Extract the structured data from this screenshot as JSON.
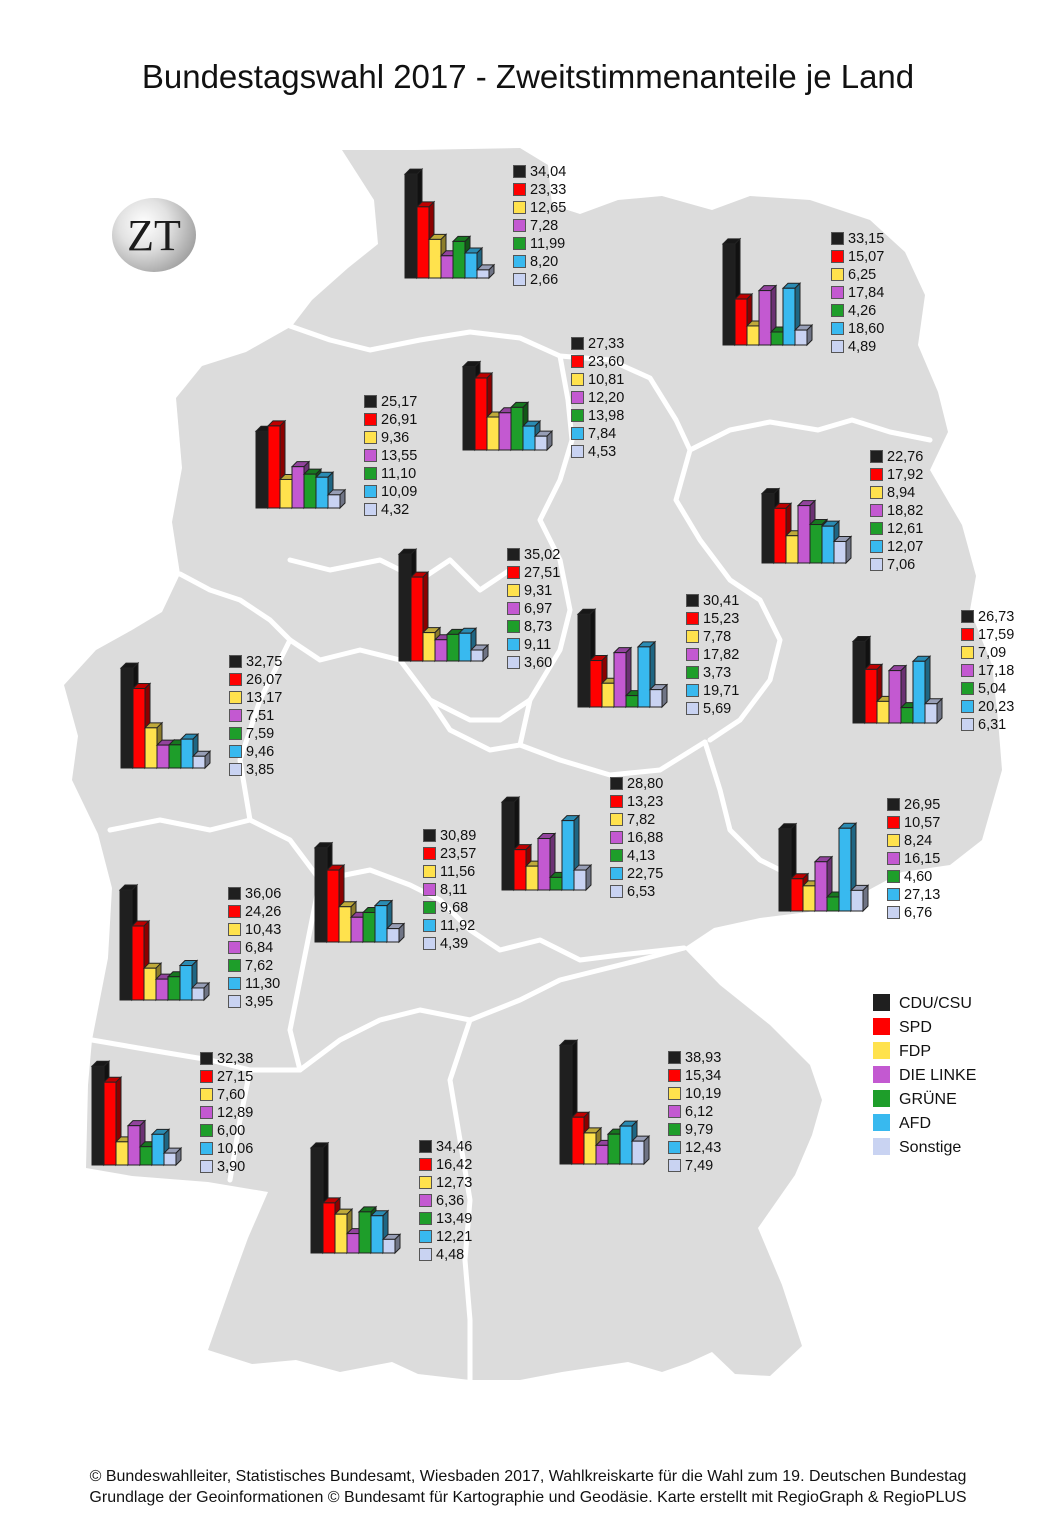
{
  "title": "Bundestagswahl 2017 - Zweitstimmenanteile je Land",
  "logo_text": "ZT",
  "credits": {
    "line1": "© Bundeswahlleiter, Statistisches Bundesamt, Wiesbaden 2017, Wahlkreiskarte für die Wahl zum 19. Deutschen Bundestag",
    "line2": "Grundlage der Geoinformationen © Bundesamt für Kartographie und Geodäsie. Karte erstellt mit RegioGraph & RegioPLUS"
  },
  "legend": [
    {
      "label": "CDU/CSU",
      "color": "#1f1f1f"
    },
    {
      "label": "SPD",
      "color": "#ff0000"
    },
    {
      "label": "FDP",
      "color": "#ffe24d"
    },
    {
      "label": "DIE LINKE",
      "color": "#c359d1"
    },
    {
      "label": "GRÜNE",
      "color": "#1e9e2a"
    },
    {
      "label": "AFD",
      "color": "#38b9ef"
    },
    {
      "label": "Sonstige",
      "color": "#c9d3f2"
    }
  ],
  "chart_data": {
    "type": "bar",
    "title": "Bundestagswahl 2017 - Zweitstimmenanteile je Land",
    "unit": "%",
    "categories": [
      "CDU/CSU",
      "SPD",
      "FDP",
      "DIE LINKE",
      "GRÜNE",
      "AFD",
      "Sonstige"
    ],
    "regions": [
      {
        "id": "schleswig-holstein",
        "values": [
          "34,04",
          "23,33",
          "12,65",
          "7,28",
          "11,99",
          "8,20",
          "2,66"
        ]
      },
      {
        "id": "mecklenburg-vorpommern",
        "values": [
          "33,15",
          "15,07",
          "6,25",
          "17,84",
          "4,26",
          "18,60",
          "4,89"
        ]
      },
      {
        "id": "hamburg",
        "values": [
          "27,33",
          "23,60",
          "10,81",
          "12,20",
          "13,98",
          "7,84",
          "4,53"
        ]
      },
      {
        "id": "bremen",
        "values": [
          "25,17",
          "26,91",
          "9,36",
          "13,55",
          "11,10",
          "10,09",
          "4,32"
        ]
      },
      {
        "id": "berlin",
        "values": [
          "22,76",
          "17,92",
          "8,94",
          "18,82",
          "12,61",
          "12,07",
          "7,06"
        ]
      },
      {
        "id": "niedersachsen",
        "values": [
          "35,02",
          "27,51",
          "9,31",
          "6,97",
          "8,73",
          "9,11",
          "3,60"
        ]
      },
      {
        "id": "sachsen-anhalt",
        "values": [
          "30,41",
          "15,23",
          "7,78",
          "17,82",
          "3,73",
          "19,71",
          "5,69"
        ]
      },
      {
        "id": "brandenburg",
        "values": [
          "26,73",
          "17,59",
          "7,09",
          "17,18",
          "5,04",
          "20,23",
          "6,31"
        ]
      },
      {
        "id": "nordrhein-westfalen",
        "values": [
          "32,75",
          "26,07",
          "13,17",
          "7,51",
          "7,59",
          "9,46",
          "3,85"
        ]
      },
      {
        "id": "thueringen",
        "values": [
          "28,80",
          "13,23",
          "7,82",
          "16,88",
          "4,13",
          "22,75",
          "6,53"
        ]
      },
      {
        "id": "sachsen",
        "values": [
          "26,95",
          "10,57",
          "8,24",
          "16,15",
          "4,60",
          "27,13",
          "6,76"
        ]
      },
      {
        "id": "hessen",
        "values": [
          "30,89",
          "23,57",
          "11,56",
          "8,11",
          "9,68",
          "11,92",
          "4,39"
        ]
      },
      {
        "id": "rheinland-pfalz",
        "values": [
          "36,06",
          "24,26",
          "10,43",
          "6,84",
          "7,62",
          "11,30",
          "3,95"
        ]
      },
      {
        "id": "saarland",
        "values": [
          "32,38",
          "27,15",
          "7,60",
          "12,89",
          "6,00",
          "10,06",
          "3,90"
        ]
      },
      {
        "id": "bayern",
        "values": [
          "38,93",
          "15,34",
          "10,19",
          "6,12",
          "9,79",
          "12,43",
          "7,49"
        ]
      },
      {
        "id": "baden-wuerttemberg",
        "values": [
          "34,46",
          "16,42",
          "12,73",
          "6,36",
          "13,49",
          "12,21",
          "4,48"
        ]
      }
    ]
  }
}
